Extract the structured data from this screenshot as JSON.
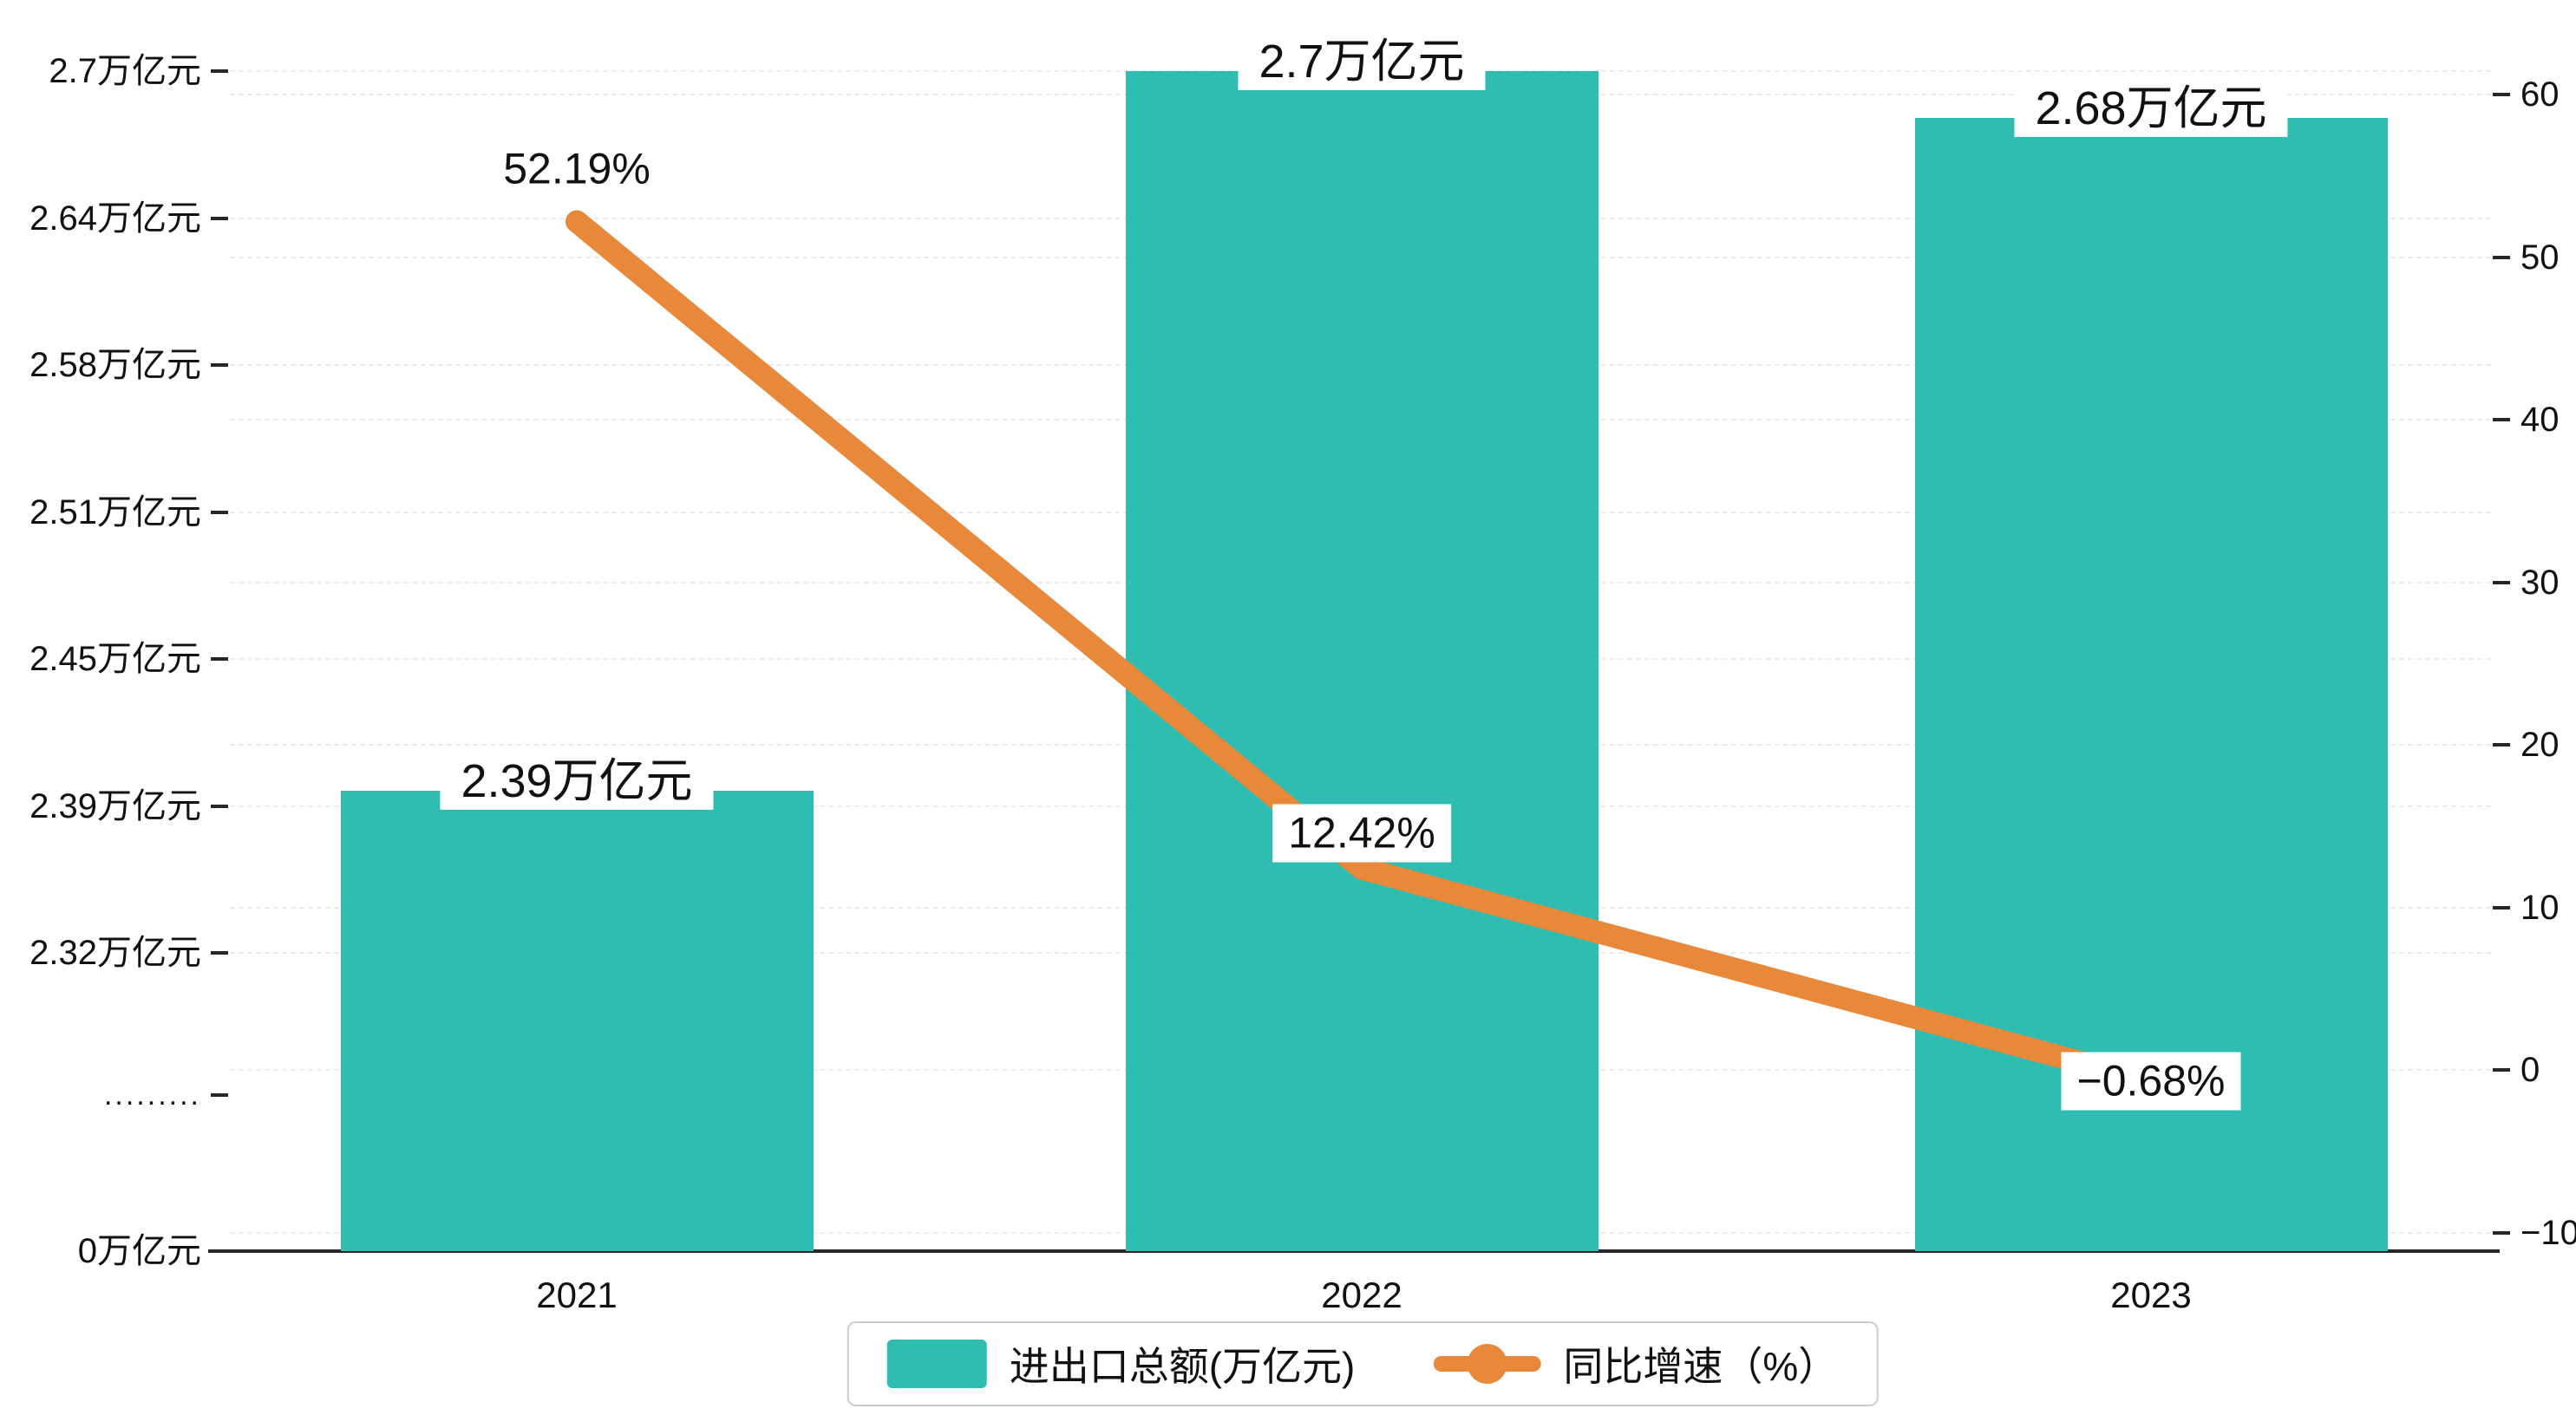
{
  "chart_data": {
    "type": "bar",
    "subtype": "bar-with-line-overlay",
    "title": "",
    "categories": [
      "2021",
      "2022",
      "2023"
    ],
    "series": [
      {
        "name": "进出口总额(万亿元)",
        "type": "bar",
        "color": "#2fbdb2",
        "values": [
          2.39,
          2.7,
          2.68
        ],
        "labels": [
          "2.39万亿元",
          "2.7万亿元",
          "2.68万亿元"
        ]
      },
      {
        "name": "同比增速（%）",
        "type": "line",
        "color": "#e8883a",
        "values": [
          52.19,
          12.42,
          -0.68
        ],
        "labels": [
          "52.19%",
          "12.42%",
          "−0.68%"
        ]
      }
    ],
    "left_axis": {
      "unit": "万亿元",
      "range_top": 2.7,
      "range_bottom": 2.32,
      "has_break": true,
      "tick_labels": [
        "2.7万亿元",
        "2.64万亿元",
        "2.58万亿元",
        "2.51万亿元",
        "2.45万亿元",
        "2.39万亿元",
        "2.32万亿元"
      ],
      "break_label": ".........",
      "zero_label": "0万亿元"
    },
    "right_axis": {
      "min": -10,
      "max": 60,
      "tick_labels": [
        "60",
        "50",
        "40",
        "30",
        "20",
        "10",
        "0",
        "−10"
      ]
    },
    "legend": {
      "position": "bottom",
      "items": [
        {
          "label": "进出口总额(万亿元)",
          "marker": "bar"
        },
        {
          "label": "同比增速（%）",
          "marker": "line"
        }
      ]
    },
    "grid": true
  },
  "colors": {
    "bar": "#2fbdb2",
    "line": "#e8883a",
    "axis": "#262626",
    "gridline": "#ebebeb",
    "background": "#ffffff"
  }
}
